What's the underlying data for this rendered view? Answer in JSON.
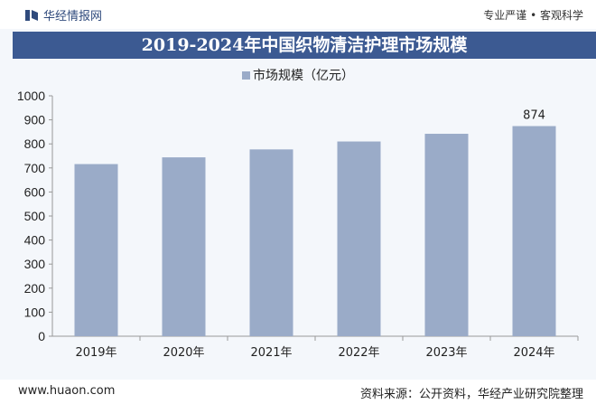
{
  "header": {
    "brand": "华经情报网",
    "slogan": "专业严谨 • 客观科学"
  },
  "footer": {
    "url": "www.huaon.com",
    "source": "资料来源：公开资料，华经产业研究院整理"
  },
  "colors": {
    "bar": "#9aabc8",
    "title_bg": "#3c5a92"
  },
  "chart_data": {
    "type": "bar",
    "title": "2019-2024年中国织物清洁护理市场规模",
    "categories": [
      "2019年",
      "2020年",
      "2021年",
      "2022年",
      "2023年",
      "2024年"
    ],
    "series": [
      {
        "name": "市场规模（亿元）",
        "values": [
          716,
          744,
          777,
          810,
          842,
          874
        ]
      }
    ],
    "data_labels": {
      "2024年": "874"
    },
    "ylim": [
      0,
      1000
    ],
    "yticks": [
      0,
      100,
      200,
      300,
      400,
      500,
      600,
      700,
      800,
      900,
      1000
    ],
    "grid": false,
    "legend": "top"
  }
}
